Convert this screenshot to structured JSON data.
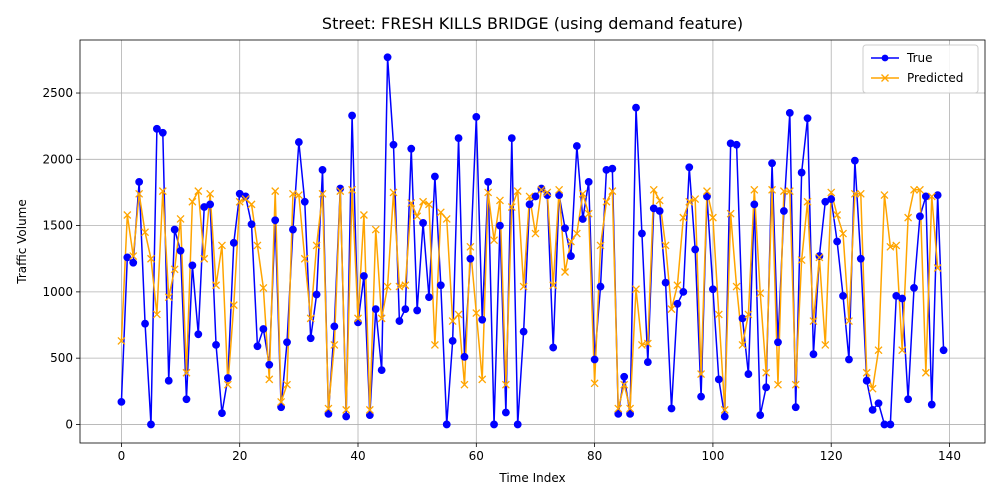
{
  "chart_data": {
    "type": "line",
    "title": "Street: FRESH KILLS BRIDGE (using demand feature)",
    "xlabel": "Time Index",
    "ylabel": "Traffic Volume",
    "xlim": [
      -7,
      146
    ],
    "ylim": [
      -140,
      2900
    ],
    "xticks": [
      0,
      20,
      40,
      60,
      80,
      100,
      120,
      140
    ],
    "yticks": [
      0,
      500,
      1000,
      1500,
      2000,
      2500
    ],
    "grid": true,
    "legend_position": "top-right",
    "series": [
      {
        "name": "True",
        "color": "#0000ff",
        "marker": "circle",
        "values": [
          170,
          1260,
          1220,
          1830,
          760,
          0,
          2230,
          2200,
          330,
          1470,
          1310,
          190,
          1200,
          680,
          1640,
          1660,
          600,
          85,
          350,
          1370,
          1740,
          1720,
          1510,
          590,
          720,
          450,
          1540,
          130,
          620,
          1470,
          2130,
          1680,
          650,
          980,
          1920,
          80,
          740,
          1780,
          60,
          2330,
          770,
          1120,
          70,
          870,
          410,
          2770,
          2110,
          780,
          870,
          2080,
          860,
          1520,
          960,
          1870,
          1050,
          0,
          630,
          2160,
          510,
          1250,
          2320,
          790,
          1830,
          0,
          1500,
          90,
          2160,
          0,
          700,
          1660,
          1720,
          1780,
          1730,
          580,
          1730,
          1480,
          1270,
          2100,
          1550,
          1830,
          490,
          1040,
          1920,
          1930,
          80,
          360,
          80,
          2390,
          1440,
          470,
          1630,
          1610,
          1070,
          120,
          910,
          1000,
          1940,
          1320,
          210,
          1720,
          1020,
          340,
          60,
          2120,
          2110,
          800,
          380,
          1660,
          70,
          280,
          1970,
          620,
          1610,
          2350,
          130,
          1900,
          2310,
          530,
          1270,
          1680,
          1700,
          1380,
          970,
          490,
          1990,
          1250,
          330,
          110,
          160,
          0,
          0,
          970,
          950,
          190,
          1030,
          1570,
          1720,
          150,
          1730,
          560
        ]
      },
      {
        "name": "Predicted",
        "color": "#ffa500",
        "marker": "x",
        "values": [
          630,
          1580,
          1270,
          1740,
          1450,
          1250,
          830,
          1760,
          960,
          1170,
          1550,
          390,
          1680,
          1760,
          1250,
          1740,
          1050,
          1350,
          300,
          900,
          1680,
          1700,
          1660,
          1350,
          1030,
          340,
          1760,
          170,
          300,
          1740,
          1730,
          1250,
          800,
          1350,
          1740,
          120,
          600,
          1760,
          110,
          1770,
          800,
          1580,
          110,
          1470,
          800,
          1040,
          1750,
          1040,
          1050,
          1670,
          1570,
          1680,
          1660,
          600,
          1600,
          1550,
          780,
          830,
          300,
          1340,
          840,
          340,
          1750,
          1390,
          1690,
          300,
          1640,
          1760,
          1040,
          1720,
          1440,
          1770,
          1750,
          1050,
          1770,
          1150,
          1380,
          1440,
          1740,
          1590,
          310,
          1350,
          1680,
          1760,
          120,
          300,
          120,
          1020,
          600,
          610,
          1770,
          1690,
          1350,
          870,
          1050,
          1560,
          1680,
          1700,
          380,
          1760,
          1560,
          830,
          110,
          1590,
          1040,
          600,
          830,
          1770,
          990,
          390,
          1770,
          300,
          1760,
          1760,
          300,
          1240,
          1680,
          780,
          1260,
          600,
          1750,
          1580,
          1440,
          780,
          1740,
          1740,
          390,
          270,
          560,
          1730,
          1340,
          1350,
          560,
          1560,
          1770,
          1770,
          390,
          1720,
          1180
        ]
      }
    ]
  }
}
